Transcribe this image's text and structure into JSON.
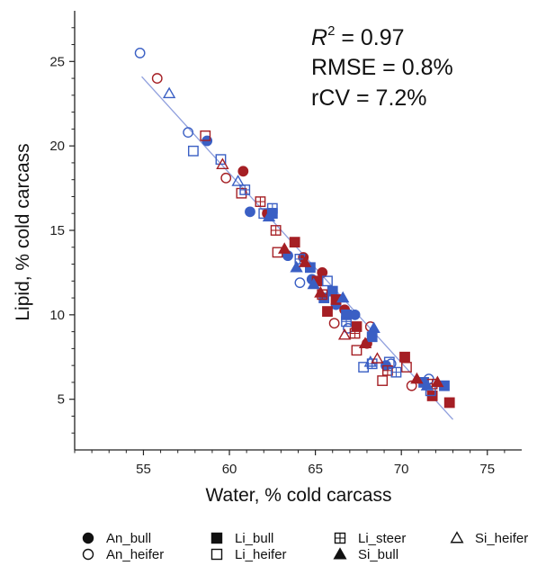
{
  "chart_data": {
    "type": "scatter",
    "title": "",
    "xlabel": "Water, % cold carcass",
    "ylabel": "Lipid, % cold carcass",
    "xlim": [
      51,
      77
    ],
    "ylim": [
      2,
      28
    ],
    "xticks": [
      "55",
      "60",
      "65",
      "70",
      "75"
    ],
    "xtick_values": [
      55,
      60,
      65,
      70,
      75
    ],
    "yticks": [
      "5",
      "10",
      "15",
      "20",
      "25"
    ],
    "ytick_values": [
      5,
      10,
      15,
      20,
      25
    ],
    "grid": false,
    "legend_position": "bottom",
    "annotations": {
      "r2_label": "R",
      "r2_sup": "2",
      "r2_value": " = 0.97",
      "rmse": "RMSE = 0.8%",
      "rcv": "rCV = 7.2%"
    },
    "colors": {
      "blue": "#3a5fc4",
      "red": "#a51f24",
      "line": "#8f9fdd"
    },
    "regression_line": {
      "x": [
        54.9,
        73.0
      ],
      "y": [
        24.1,
        3.8
      ]
    },
    "series": [
      {
        "name": "An_bull",
        "marker": "circle",
        "filled": true,
        "points": [
          [
            58.7,
            20.3
          ],
          [
            60.8,
            18.5
          ],
          [
            61.2,
            16.1
          ],
          [
            62.2,
            16.0
          ],
          [
            63.4,
            13.5
          ],
          [
            64.3,
            13.4
          ],
          [
            64.8,
            12.1
          ],
          [
            65.4,
            12.5
          ],
          [
            66.2,
            10.6
          ],
          [
            66.7,
            10.3
          ],
          [
            67.3,
            10.0
          ],
          [
            68.0,
            8.3
          ],
          [
            69.1,
            7.0
          ]
        ]
      },
      {
        "name": "An_heifer",
        "marker": "circle",
        "filled": false,
        "points": [
          [
            54.8,
            25.5
          ],
          [
            55.8,
            24.0
          ],
          [
            57.6,
            20.8
          ],
          [
            59.8,
            18.1
          ],
          [
            64.1,
            11.9
          ],
          [
            66.1,
            9.5
          ],
          [
            66.9,
            9.2
          ],
          [
            68.2,
            9.3
          ],
          [
            69.4,
            7.1
          ],
          [
            70.6,
            5.8
          ],
          [
            71.6,
            6.2
          ]
        ]
      },
      {
        "name": "Li_bull",
        "marker": "square",
        "filled": true,
        "points": [
          [
            62.5,
            16.0
          ],
          [
            63.8,
            14.3
          ],
          [
            64.7,
            12.8
          ],
          [
            65.1,
            12.0
          ],
          [
            65.5,
            11.0
          ],
          [
            65.7,
            10.2
          ],
          [
            66.0,
            11.4
          ],
          [
            66.2,
            10.9
          ],
          [
            66.8,
            10.0
          ],
          [
            67.4,
            9.3
          ],
          [
            68.3,
            8.7
          ],
          [
            70.2,
            7.5
          ],
          [
            71.3,
            6.0
          ],
          [
            71.8,
            5.2
          ],
          [
            72.5,
            5.8
          ],
          [
            72.8,
            4.8
          ]
        ]
      },
      {
        "name": "Li_heifer",
        "marker": "square",
        "filled": false,
        "points": [
          [
            57.9,
            19.7
          ],
          [
            58.6,
            20.6
          ],
          [
            59.5,
            19.2
          ],
          [
            60.7,
            17.2
          ],
          [
            62.0,
            16.0
          ],
          [
            62.8,
            13.7
          ],
          [
            65.7,
            12.0
          ],
          [
            67.4,
            7.9
          ],
          [
            67.8,
            6.9
          ],
          [
            68.9,
            6.1
          ],
          [
            69.3,
            7.2
          ],
          [
            70.3,
            6.9
          ],
          [
            71.7,
            5.5
          ]
        ]
      },
      {
        "name": "Li_steer",
        "marker": "square-cross",
        "filled": false,
        "points": [
          [
            60.9,
            17.4
          ],
          [
            61.8,
            16.7
          ],
          [
            62.5,
            16.3
          ],
          [
            62.7,
            15.0
          ],
          [
            64.1,
            13.3
          ],
          [
            65.4,
            11.2
          ],
          [
            66.8,
            9.6
          ],
          [
            67.3,
            8.9
          ],
          [
            68.3,
            7.1
          ],
          [
            69.2,
            6.7
          ],
          [
            69.7,
            6.6
          ],
          [
            71.8,
            5.9
          ]
        ]
      },
      {
        "name": "Si_bull",
        "marker": "triangle",
        "filled": true,
        "points": [
          [
            62.3,
            15.8
          ],
          [
            63.2,
            13.9
          ],
          [
            63.9,
            12.8
          ],
          [
            64.4,
            13.1
          ],
          [
            64.9,
            11.8
          ],
          [
            65.3,
            11.3
          ],
          [
            66.6,
            11.0
          ],
          [
            67.9,
            8.3
          ],
          [
            68.4,
            9.2
          ],
          [
            70.9,
            6.2
          ],
          [
            71.5,
            5.8
          ],
          [
            72.1,
            6.0
          ]
        ]
      },
      {
        "name": "Si_heifer",
        "marker": "triangle",
        "filled": false,
        "points": [
          [
            56.5,
            23.1
          ],
          [
            59.6,
            18.9
          ],
          [
            60.5,
            17.9
          ],
          [
            66.7,
            8.8
          ],
          [
            68.2,
            7.2
          ],
          [
            68.6,
            7.4
          ]
        ]
      }
    ]
  },
  "legend": {
    "items": [
      {
        "label": "An_bull",
        "marker": "circle",
        "filled": true
      },
      {
        "label": "An_heifer",
        "marker": "circle",
        "filled": false
      },
      {
        "label": "Li_bull",
        "marker": "square",
        "filled": true
      },
      {
        "label": "Li_heifer",
        "marker": "square",
        "filled": false
      },
      {
        "label": "Li_steer",
        "marker": "square-cross",
        "filled": false
      },
      {
        "label": "Si_bull",
        "marker": "triangle",
        "filled": true
      },
      {
        "label": "Si_heifer",
        "marker": "triangle",
        "filled": false
      }
    ]
  }
}
